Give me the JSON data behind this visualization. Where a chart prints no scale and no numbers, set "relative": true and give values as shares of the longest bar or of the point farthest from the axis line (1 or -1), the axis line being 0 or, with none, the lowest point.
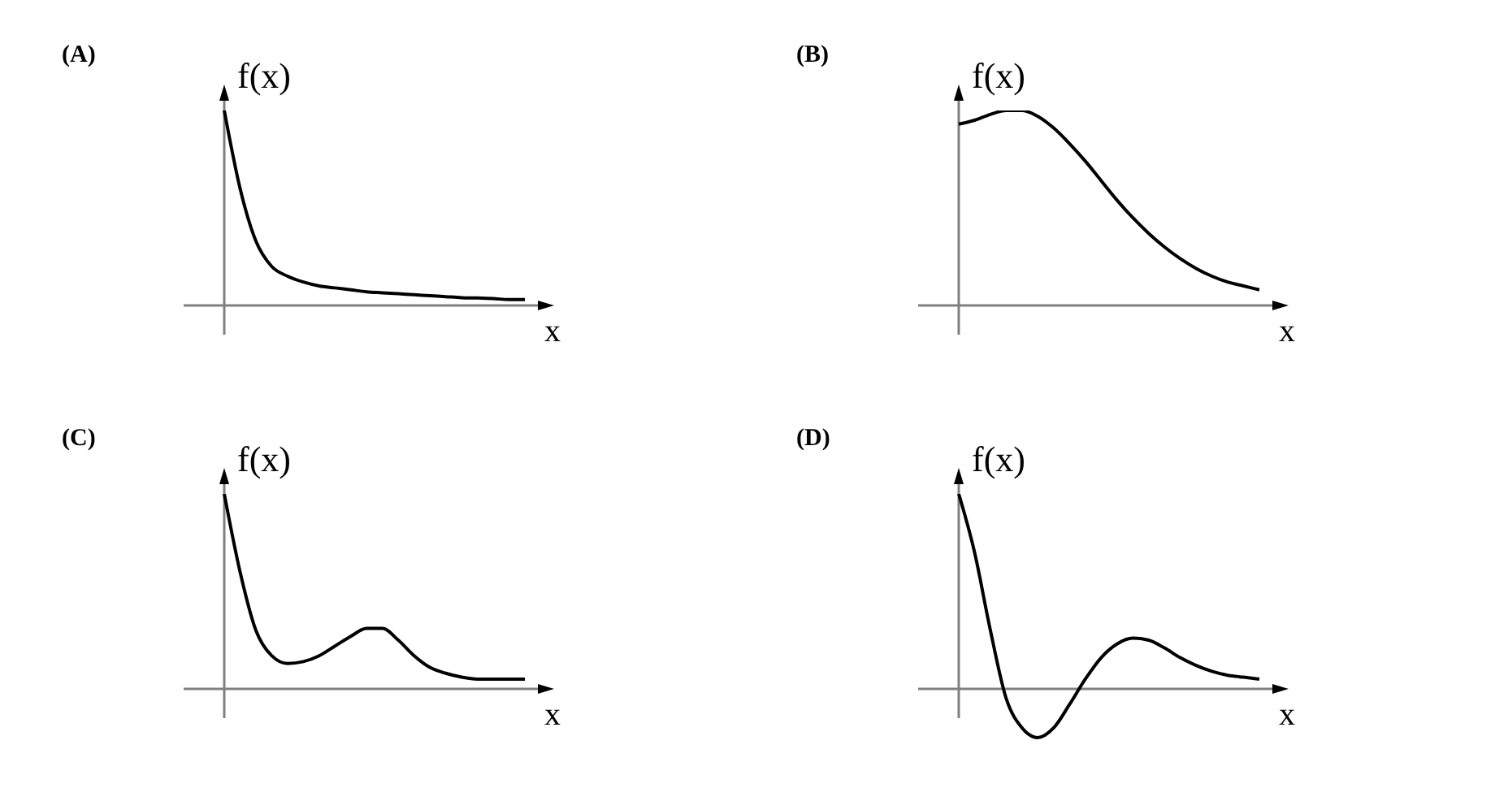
{
  "chart_data": [
    {
      "type": "line",
      "title": "(A)",
      "xlabel": "x",
      "ylabel": "f(x)",
      "relative": true,
      "color": "#000000",
      "categories": [
        null,
        null,
        null,
        null,
        null,
        null,
        null,
        null,
        null,
        null,
        null,
        null,
        null,
        null,
        null,
        null,
        null,
        null,
        null,
        null
      ],
      "values": [
        1,
        0.6,
        0.33,
        0.2,
        0.15,
        0.12,
        0.1,
        0.09,
        0.08,
        0.07,
        0.065,
        0.06,
        0.055,
        0.05,
        0.045,
        0.04,
        0.038,
        0.035,
        0.03,
        0.03
      ]
    },
    {
      "type": "line",
      "title": "(B)",
      "xlabel": "x",
      "ylabel": "f(x)",
      "relative": true,
      "color": "#000000",
      "categories": [
        null,
        null,
        null,
        null,
        null,
        null,
        null,
        null,
        null,
        null,
        null,
        null,
        null,
        null,
        null,
        null,
        null,
        null,
        null,
        null
      ],
      "values": [
        0.93,
        0.95,
        0.98,
        1,
        1,
        0.97,
        0.91,
        0.83,
        0.74,
        0.64,
        0.54,
        0.45,
        0.37,
        0.3,
        0.24,
        0.19,
        0.15,
        0.12,
        0.1,
        0.08
      ]
    },
    {
      "type": "line",
      "title": "(C)",
      "xlabel": "x",
      "ylabel": "f(x)",
      "relative": true,
      "color": "#000000",
      "categories": [
        null,
        null,
        null,
        null,
        null,
        null,
        null,
        null,
        null,
        null,
        null,
        null,
        null,
        null,
        null,
        null,
        null,
        null,
        null,
        null
      ],
      "values": [
        1,
        0.6,
        0.3,
        0.17,
        0.13,
        0.14,
        0.17,
        0.22,
        0.27,
        0.31,
        0.31,
        0.25,
        0.17,
        0.11,
        0.08,
        0.06,
        0.05,
        0.05,
        0.05,
        0.05
      ]
    },
    {
      "type": "line",
      "title": "(D)",
      "xlabel": "x",
      "ylabel": "f(x)",
      "relative": true,
      "color": "#000000",
      "categories": [
        null,
        null,
        null,
        null,
        null,
        null,
        null,
        null,
        null,
        null,
        null,
        null,
        null,
        null,
        null,
        null,
        null,
        null,
        null,
        null
      ],
      "values": [
        1,
        0.7,
        0.3,
        -0.05,
        -0.2,
        -0.25,
        -0.2,
        -0.08,
        0.05,
        0.16,
        0.23,
        0.26,
        0.25,
        0.21,
        0.16,
        0.12,
        0.09,
        0.07,
        0.06,
        0.05
      ]
    }
  ]
}
